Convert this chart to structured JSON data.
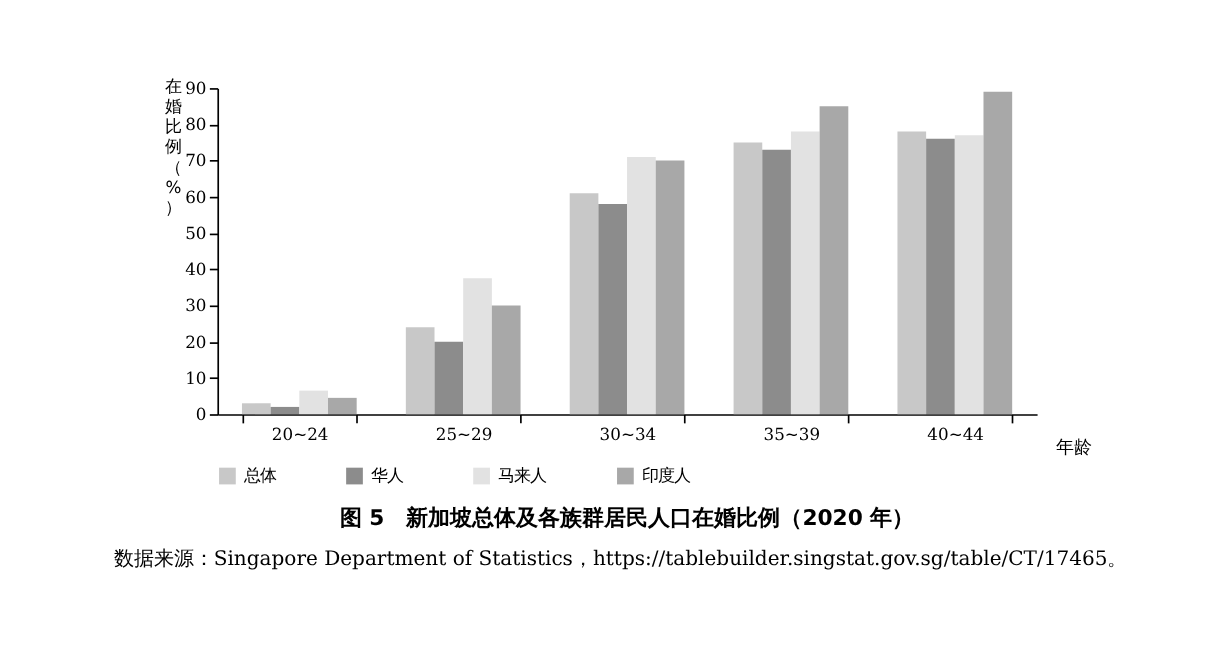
{
  "chart_data": {
    "type": "bar",
    "title": "图 5　新加坡总体及各族群居民人口在婚比例（2020 年）",
    "xlabel": "年龄",
    "ylabel": "在婚比例（%）",
    "categories": [
      "20~24",
      "25~29",
      "30~34",
      "35~39",
      "40~44"
    ],
    "series": [
      {
        "name": "总体",
        "color": "#c8c8c8",
        "values": [
          3,
          24,
          61,
          75,
          78
        ]
      },
      {
        "name": "华人",
        "color": "#8c8c8c",
        "values": [
          2,
          20,
          58,
          73,
          76
        ]
      },
      {
        "name": "马来人",
        "color": "#e2e2e2",
        "values": [
          6.5,
          37.5,
          71,
          78,
          77
        ]
      },
      {
        "name": "印度人",
        "color": "#a8a8a8",
        "values": [
          4.5,
          30,
          70,
          85,
          89
        ]
      }
    ],
    "ylim": [
      0,
      90
    ],
    "yticks": [
      0,
      10,
      20,
      30,
      40,
      50,
      60,
      70,
      80,
      90
    ],
    "grid": false,
    "legend": "bottom",
    "annotations": [
      "数据来源：Singapore Department of Statistics，https://tablebuilder.singstat.gov.sg/table/CT/17465。"
    ]
  }
}
